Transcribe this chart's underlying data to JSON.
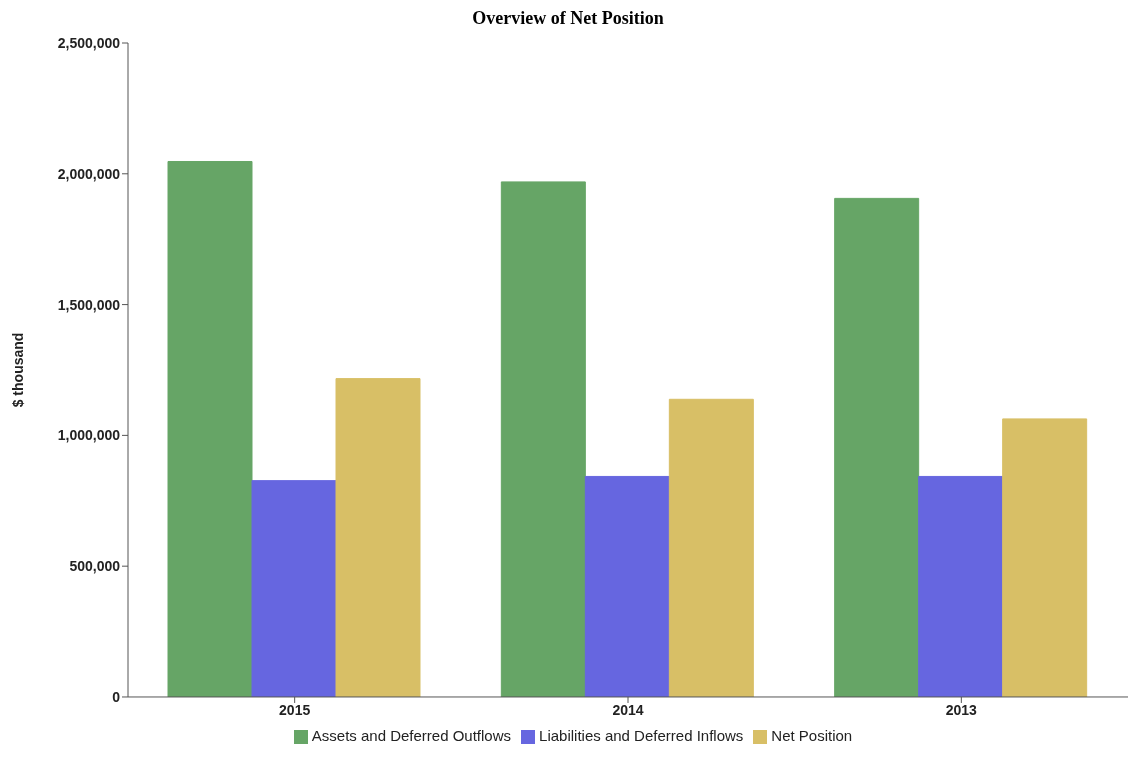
{
  "chart_data": {
    "type": "bar",
    "title": "Overview of Net Position",
    "ylabel": "$ thousand",
    "categories": [
      "2015",
      "2014",
      "2013"
    ],
    "series": [
      {
        "name": "Assets and Deferred Outflows",
        "color": "#66a566",
        "values": [
          2047000,
          1969000,
          1906000
        ]
      },
      {
        "name": "Liabilities and Deferred Inflows",
        "color": "#6666e0",
        "values": [
          827000,
          843000,
          843000
        ]
      },
      {
        "name": "Net Position",
        "color": "#d8bf66",
        "values": [
          1217000,
          1138000,
          1063000
        ]
      }
    ],
    "ylim": [
      0,
      2500000
    ],
    "yticks": [
      {
        "value": 0,
        "label": "0"
      },
      {
        "value": 500000,
        "label": "500,000"
      },
      {
        "value": 1000000,
        "label": "1,000,000"
      },
      {
        "value": 1500000,
        "label": "1,500,000"
      },
      {
        "value": 2000000,
        "label": "2,000,000"
      },
      {
        "value": 2500000,
        "label": "2,500,000"
      }
    ],
    "legend": "bottom",
    "grid": false
  }
}
